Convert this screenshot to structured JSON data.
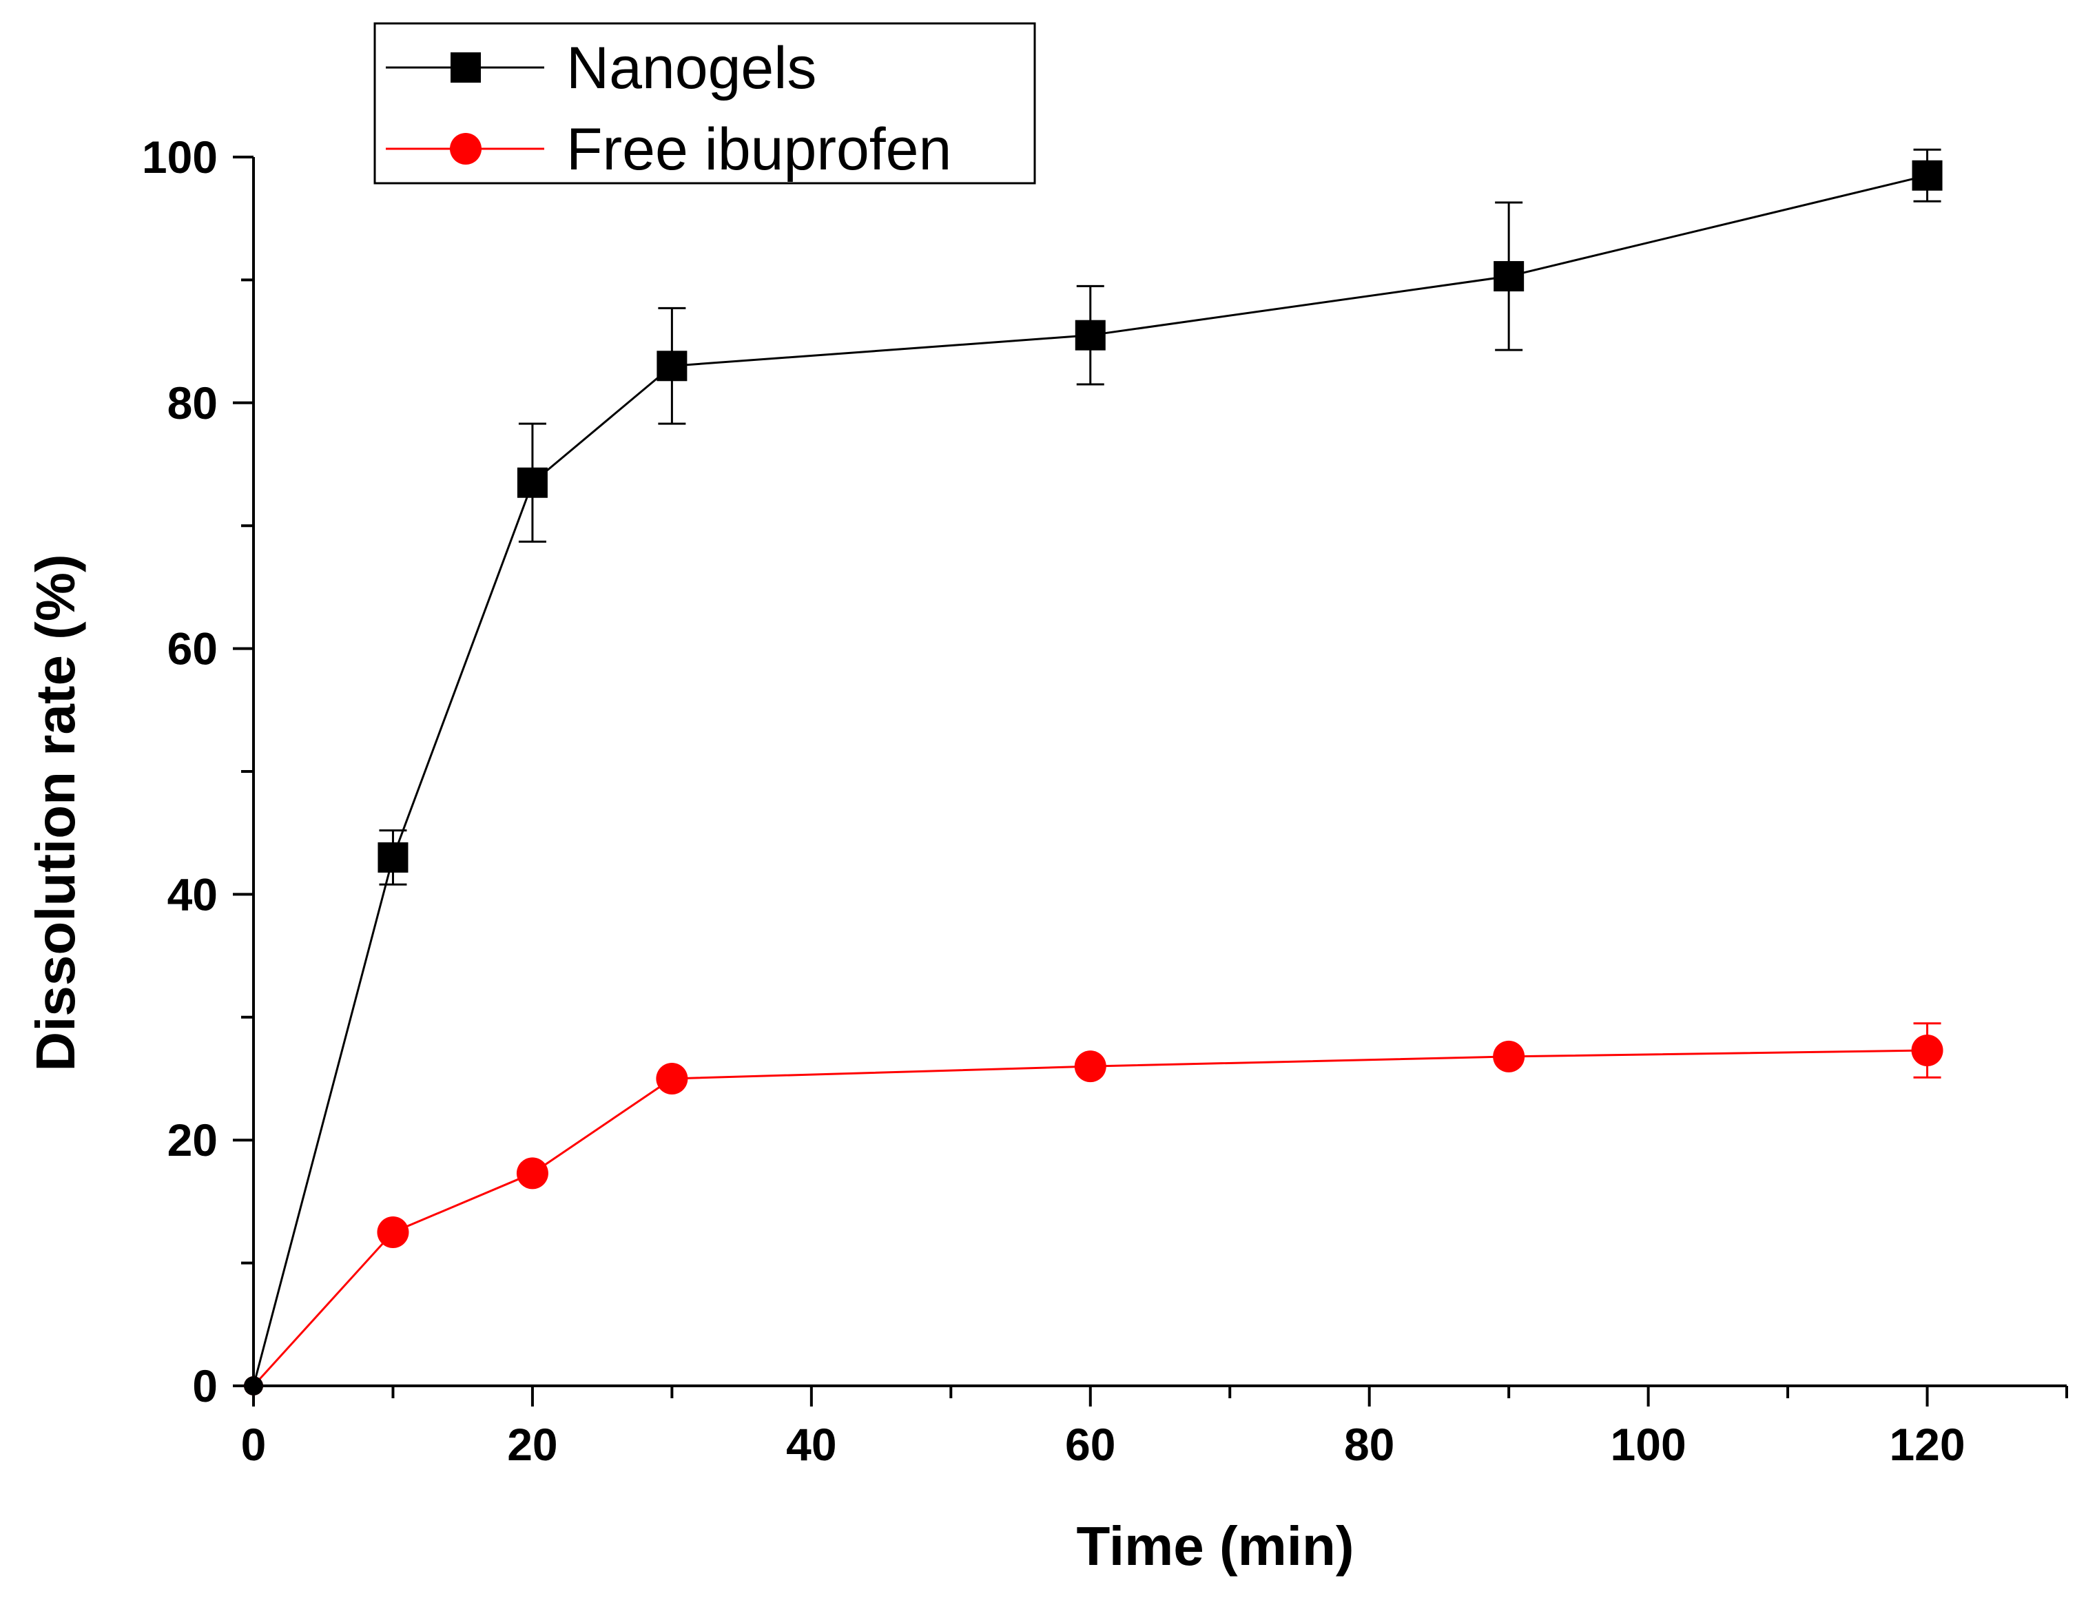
{
  "chart_data": {
    "type": "line",
    "xlabel": "Time (min)",
    "ylabel": "Dissolution rate (%)",
    "xlim": [
      0,
      130
    ],
    "ylim": [
      0,
      100
    ],
    "x_ticks": [
      0,
      20,
      40,
      60,
      80,
      100,
      120
    ],
    "y_ticks": [
      0,
      20,
      40,
      60,
      80,
      100
    ],
    "x_minor_step": 10,
    "y_minor_step": 10,
    "grid": false,
    "legend_position": "top-left",
    "series": [
      {
        "name": "Nanogels",
        "color": "#000000",
        "marker": "square",
        "x": [
          0,
          10,
          20,
          30,
          60,
          90,
          120
        ],
        "y": [
          0,
          43,
          73.5,
          83,
          85.5,
          90.3,
          98.5
        ],
        "error": [
          0,
          2.2,
          4.8,
          4.7,
          4,
          6,
          2.1
        ]
      },
      {
        "name": "Free ibuprofen",
        "color": "#ff0000",
        "marker": "circle",
        "x": [
          0,
          10,
          20,
          30,
          60,
          90,
          120
        ],
        "y": [
          0,
          12.5,
          17.3,
          25,
          26,
          26.8,
          27.3
        ],
        "error": [
          0,
          0,
          0,
          0,
          0,
          0,
          2.2
        ]
      }
    ]
  }
}
